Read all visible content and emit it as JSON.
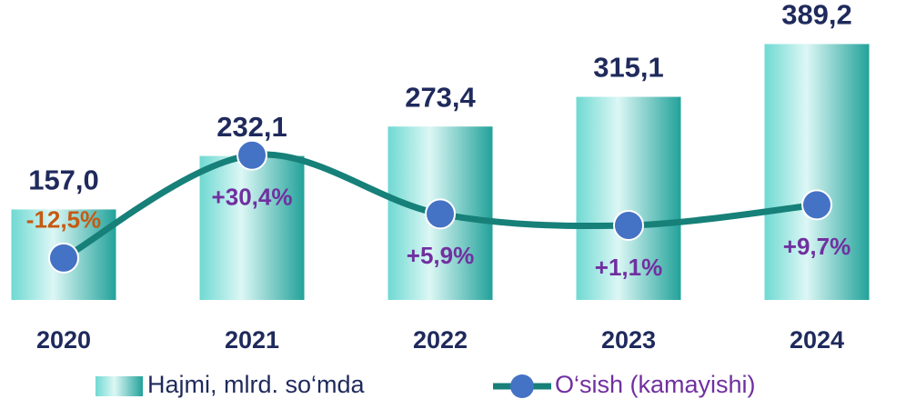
{
  "chart_data": {
    "type": "bar",
    "categories": [
      "2020",
      "2021",
      "2022",
      "2023",
      "2024"
    ],
    "series": [
      {
        "name": "Hajmi, mlrd. so‘mda",
        "type": "bar",
        "color": "#22a29a",
        "values": [
          157.0,
          232.1,
          273.4,
          315.1,
          389.2
        ],
        "value_labels": [
          "157,0",
          "232,1",
          "273,4",
          "315,1",
          "389,2"
        ]
      },
      {
        "name": "O‘sish (kamayishi)",
        "type": "line",
        "axis": "y2",
        "color": "#168079",
        "marker_color": "#4472c4",
        "values": [
          -12.5,
          30.4,
          5.9,
          1.1,
          9.7
        ],
        "value_labels": [
          "-12,5%",
          "+30,4%",
          "+5,9%",
          "+1,1%",
          "+9,7%"
        ],
        "label_colors": [
          "#c55a11",
          "#7030a0",
          "#7030a0",
          "#7030a0",
          "#7030a0"
        ]
      }
    ],
    "ylim": [
      30,
      400
    ],
    "y2lim": [
      -30,
      80
    ]
  }
}
